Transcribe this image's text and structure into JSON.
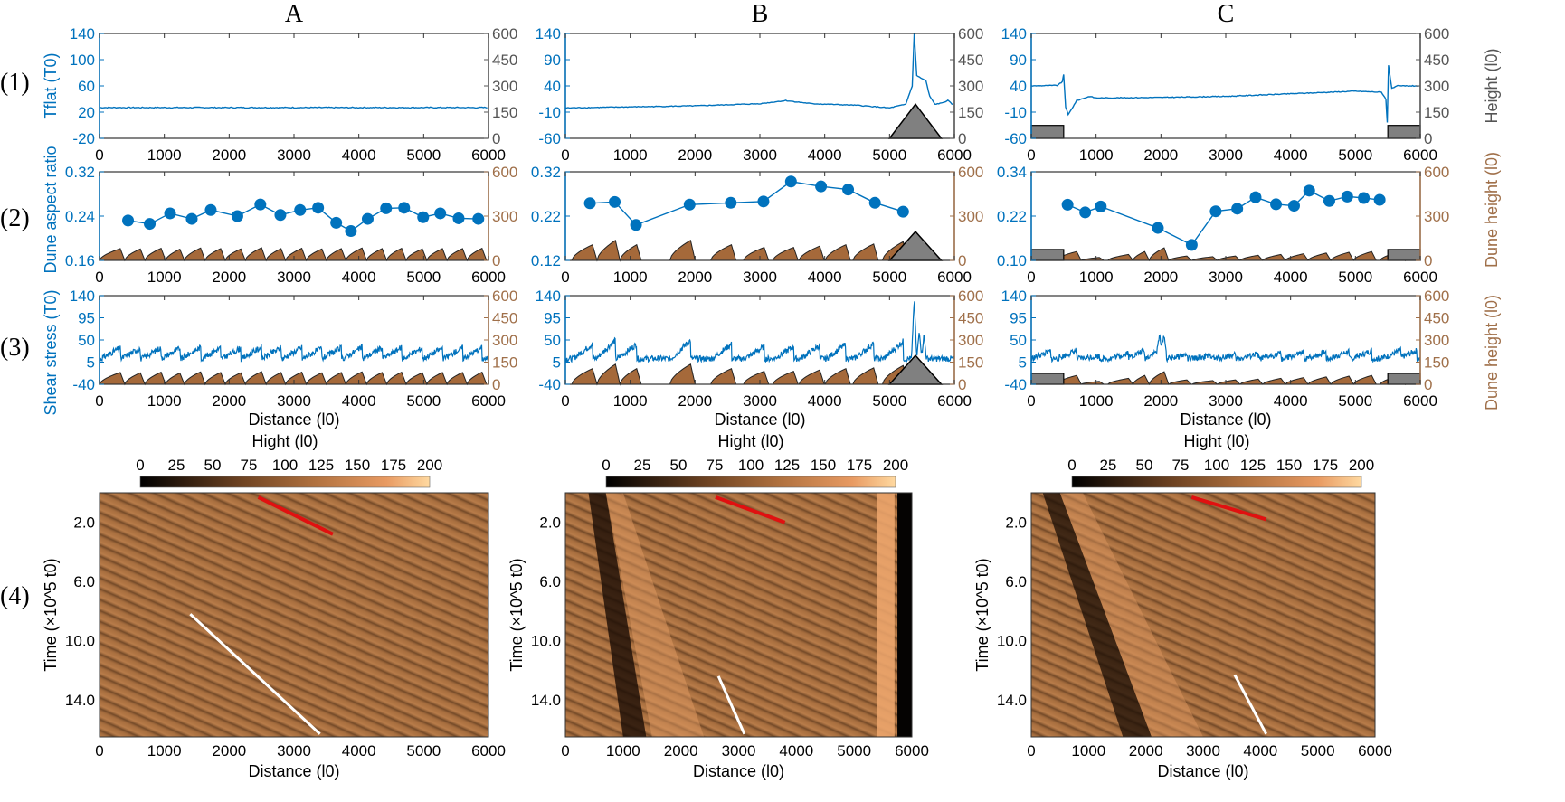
{
  "colors": {
    "blue": "#0072BD",
    "dune": "#A5693A",
    "dune_axis": "#A0704A",
    "obstacle": "#808080",
    "height_axis": "#555555",
    "red_line": "#E01010",
    "white_line": "#FFFFFF"
  },
  "column_titles": [
    "A",
    "B",
    "C"
  ],
  "row_labels": [
    "(1)",
    "(2)",
    "(3)",
    "(4)"
  ],
  "axis_labels": {
    "row1_left": "Tflat (T0)",
    "row1_right": "Height (l0)",
    "row2_left": "Dune aspect ratio",
    "row2_right": "Dune height (l0)",
    "row3_left": "Shear stress (T0)",
    "row3_right": "Dune height (l0)",
    "distance": "Distance (l0)",
    "time": "Time (×10^5 t0)",
    "colorbar": "Hight (l0)"
  },
  "chart_data": [
    {
      "panel": "A1",
      "type": "line",
      "xlim": [
        0,
        6000
      ],
      "ylim": [
        -20,
        140
      ],
      "yticks": [
        -20,
        20,
        60,
        100,
        140
      ],
      "y2lim": [
        0,
        600
      ],
      "y2ticks": [
        0,
        150,
        300,
        450,
        600
      ],
      "xticks": [
        0,
        1000,
        2000,
        3000,
        4000,
        5000,
        6000
      ],
      "series": [
        {
          "x": [
            0,
            1000,
            2000,
            3000,
            4000,
            5000,
            6000
          ],
          "y": [
            27,
            27,
            27,
            27,
            27,
            27,
            27
          ]
        }
      ],
      "obstacles": []
    },
    {
      "panel": "B1",
      "type": "line",
      "xlim": [
        0,
        6000
      ],
      "ylim": [
        -60,
        140
      ],
      "yticks": [
        -60,
        -10,
        40,
        90,
        140
      ],
      "y2lim": [
        0,
        600
      ],
      "y2ticks": [
        0,
        150,
        300,
        450,
        600
      ],
      "xticks": [
        0,
        1000,
        2000,
        3000,
        4000,
        5000,
        6000
      ],
      "series": [
        {
          "x": [
            0,
            1000,
            2000,
            3000,
            3400,
            3800,
            4500,
            5000,
            5250,
            5350,
            5380,
            5420,
            5480,
            5560,
            5620,
            5700,
            5800,
            5900,
            6000
          ],
          "y": [
            -2,
            0,
            2,
            6,
            12,
            6,
            3,
            -2,
            5,
            40,
            140,
            60,
            55,
            50,
            20,
            5,
            7,
            12,
            2
          ]
        }
      ],
      "obstacles": [
        {
          "shape": "triangle",
          "start": 5000,
          "peak": 5400,
          "end": 5800,
          "height": 195
        }
      ]
    },
    {
      "panel": "C1",
      "type": "line",
      "xlim": [
        0,
        6000
      ],
      "ylim": [
        -60,
        140
      ],
      "yticks": [
        -60,
        -10,
        40,
        90,
        140
      ],
      "y2lim": [
        0,
        600
      ],
      "y2ticks": [
        0,
        150,
        300,
        450,
        600
      ],
      "xticks": [
        0,
        1000,
        2000,
        3000,
        4000,
        5000,
        6000
      ],
      "series": [
        {
          "x": [
            0,
            400,
            480,
            500,
            530,
            570,
            700,
            900,
            1000,
            2000,
            3000,
            4000,
            5000,
            5400,
            5470,
            5490,
            5510,
            5560,
            5650,
            6000
          ],
          "y": [
            40,
            41,
            48,
            62,
            0,
            -15,
            12,
            20,
            17,
            18,
            20,
            25,
            30,
            28,
            15,
            -30,
            80,
            35,
            40,
            40
          ]
        }
      ],
      "obstacles": [
        {
          "shape": "block",
          "start": 0,
          "end": 500,
          "height": 74
        },
        {
          "shape": "block",
          "start": 5500,
          "end": 6000,
          "height": 74
        }
      ]
    },
    {
      "panel": "A2",
      "type": "scatter",
      "xlim": [
        0,
        6000
      ],
      "ylim": [
        0.16,
        0.32
      ],
      "yticks": [
        0.16,
        0.24,
        0.32
      ],
      "y2lim": [
        0,
        600
      ],
      "y2ticks": [
        0,
        300,
        600
      ],
      "xticks": [
        0,
        1000,
        2000,
        3000,
        4000,
        5000,
        6000
      ],
      "x": [
        440,
        775,
        1089,
        1423,
        1716,
        2127,
        2481,
        2790,
        3094,
        3372,
        3651,
        3878,
        4137,
        4420,
        4699,
        4992,
        5256,
        5539,
        5843
      ],
      "y": [
        0.232,
        0.226,
        0.245,
        0.235,
        0.251,
        0.24,
        0.261,
        0.242,
        0.251,
        0.255,
        0.228,
        0.213,
        0.235,
        0.254,
        0.255,
        0.238,
        0.245,
        0.236,
        0.235
      ]
    },
    {
      "panel": "B2",
      "type": "scatter",
      "xlim": [
        0,
        6000
      ],
      "ylim": [
        0.12,
        0.32
      ],
      "yticks": [
        0.12,
        0.22,
        0.32
      ],
      "y2lim": [
        0,
        600
      ],
      "y2ticks": [
        0,
        300,
        600
      ],
      "xticks": [
        0,
        1000,
        2000,
        3000,
        4000,
        5000,
        6000
      ],
      "x": [
        378,
        761,
        1089,
        1916,
        2551,
        3055,
        3479,
        3943,
        4361,
        4775,
        5209
      ],
      "y": [
        0.249,
        0.252,
        0.2,
        0.246,
        0.25,
        0.253,
        0.298,
        0.287,
        0.28,
        0.25,
        0.23
      ]
    },
    {
      "panel": "C2",
      "type": "scatter",
      "xlim": [
        0,
        6000
      ],
      "ylim": [
        0.1,
        0.34
      ],
      "yticks": [
        0.1,
        0.22,
        0.34
      ],
      "y2lim": [
        0,
        600
      ],
      "y2ticks": [
        0,
        300,
        600
      ],
      "xticks": [
        0,
        1000,
        2000,
        3000,
        4000,
        5000,
        6000
      ],
      "x": [
        560,
        832,
        1072,
        1953,
        2475,
        2845,
        3177,
        3460,
        3775,
        4053,
        4287,
        4597,
        4874,
        5130,
        5374
      ],
      "y": [
        0.251,
        0.23,
        0.246,
        0.188,
        0.142,
        0.233,
        0.24,
        0.271,
        0.252,
        0.248,
        0.289,
        0.261,
        0.273,
        0.269,
        0.264
      ]
    },
    {
      "panel": "A3",
      "type": "line",
      "xlim": [
        0,
        6000
      ],
      "ylim": [
        -40,
        140
      ],
      "yticks": [
        -40,
        5,
        50,
        95,
        140
      ],
      "y2lim": [
        0,
        600
      ],
      "y2ticks": [
        0,
        150,
        300,
        450,
        600
      ],
      "xticks": [
        0,
        1000,
        2000,
        3000,
        4000,
        5000,
        6000
      ],
      "xlabel": "Distance (l0)",
      "spikes": []
    },
    {
      "panel": "B3",
      "type": "line",
      "xlim": [
        0,
        6000
      ],
      "ylim": [
        -40,
        140
      ],
      "yticks": [
        -40,
        5,
        50,
        95,
        140
      ],
      "y2lim": [
        0,
        600
      ],
      "y2ticks": [
        0,
        150,
        300,
        450,
        600
      ],
      "xticks": [
        0,
        1000,
        2000,
        3000,
        4000,
        5000,
        6000
      ],
      "xlabel": "Distance (l0)",
      "spikes": [
        {
          "x": 5380,
          "y": 135
        },
        {
          "x": 5460,
          "y": 70
        },
        {
          "x": 5530,
          "y": 60
        }
      ]
    },
    {
      "panel": "C3",
      "type": "line",
      "xlim": [
        0,
        6000
      ],
      "ylim": [
        -40,
        140
      ],
      "yticks": [
        -40,
        5,
        50,
        95,
        140
      ],
      "y2lim": [
        0,
        600
      ],
      "y2ticks": [
        0,
        150,
        300,
        450,
        600
      ],
      "xticks": [
        0,
        1000,
        2000,
        3000,
        4000,
        5000,
        6000
      ],
      "xlabel": "Distance (l0)",
      "spikes": [
        {
          "x": 1980,
          "y": 60
        },
        {
          "x": 2050,
          "y": 62
        }
      ]
    },
    {
      "panel": "A4",
      "type": "heatmap",
      "xlim": [
        0,
        6000
      ],
      "ylim": [
        0,
        16.5
      ],
      "yticks": [
        2.0,
        6.0,
        10.0,
        14.0
      ],
      "xticks": [
        0,
        1000,
        2000,
        3000,
        4000,
        5000,
        6000
      ],
      "colorbar": {
        "label": "Hight (l0)",
        "range": [
          0,
          200
        ],
        "ticks": [
          0,
          25,
          50,
          75,
          100,
          125,
          150,
          175,
          200
        ]
      },
      "red_line": [
        [
          2450,
          0.3
        ],
        [
          3600,
          2.8
        ]
      ],
      "white_line": [
        [
          1400,
          8.2
        ],
        [
          3400,
          16.3
        ]
      ]
    },
    {
      "panel": "B4",
      "type": "heatmap",
      "xlim": [
        0,
        6000
      ],
      "ylim": [
        0,
        16.5
      ],
      "yticks": [
        2.0,
        6.0,
        10.0,
        14.0
      ],
      "xticks": [
        0,
        1000,
        2000,
        3000,
        4000,
        5000,
        6000
      ],
      "colorbar": {
        "label": "Hight (l0)",
        "range": [
          0,
          200
        ],
        "ticks": [
          0,
          25,
          50,
          75,
          100,
          125,
          150,
          175,
          200
        ]
      },
      "red_line": [
        [
          2600,
          0.3
        ],
        [
          3800,
          2.0
        ]
      ],
      "white_line": [
        [
          2650,
          12.4
        ],
        [
          3100,
          16.3
        ]
      ]
    },
    {
      "panel": "C4",
      "type": "heatmap",
      "xlim": [
        0,
        6000
      ],
      "ylim": [
        0,
        16.5
      ],
      "yticks": [
        2.0,
        6.0,
        10.0,
        14.0
      ],
      "xticks": [
        0,
        1000,
        2000,
        3000,
        4000,
        5000,
        6000
      ],
      "colorbar": {
        "label": "Hight (l0)",
        "range": [
          0,
          200
        ],
        "ticks": [
          0,
          25,
          50,
          75,
          100,
          125,
          150,
          175,
          200
        ]
      },
      "red_line": [
        [
          2800,
          0.3
        ],
        [
          4100,
          1.8
        ]
      ],
      "white_line": [
        [
          3550,
          12.3
        ],
        [
          4100,
          16.3
        ]
      ]
    }
  ],
  "dune_profiles": {
    "A": {
      "crest_x": [
        320,
        630,
        950,
        1240,
        1560,
        1870,
        2180,
        2500,
        2800,
        3120,
        3430,
        3730,
        4050,
        4360,
        4660,
        4980,
        5290,
        5600,
        5900
      ],
      "crest_height": [
        80,
        78,
        82,
        76,
        84,
        80,
        78,
        86,
        80,
        82,
        78,
        80,
        84,
        80,
        82,
        78,
        80,
        80,
        82
      ]
    },
    "B": {
      "crest_x": [
        418,
        772,
        1100,
        1931,
        2561,
        3066,
        3520,
        3923,
        4326,
        4755,
        5210
      ],
      "crest_height": [
        106,
        136,
        106,
        136,
        106,
        88,
        88,
        97,
        106,
        111,
        127
      ]
    },
    "C": {
      "crest_x": [
        300,
        700,
        1050,
        1500,
        1750,
        2050,
        2400,
        2800,
        3150,
        3500,
        3850,
        4200,
        4550,
        4900,
        5250,
        5700,
        5950
      ],
      "crest_height": [
        55,
        60,
        20,
        40,
        60,
        85,
        30,
        25,
        30,
        35,
        40,
        45,
        50,
        55,
        60,
        60,
        60
      ]
    }
  }
}
